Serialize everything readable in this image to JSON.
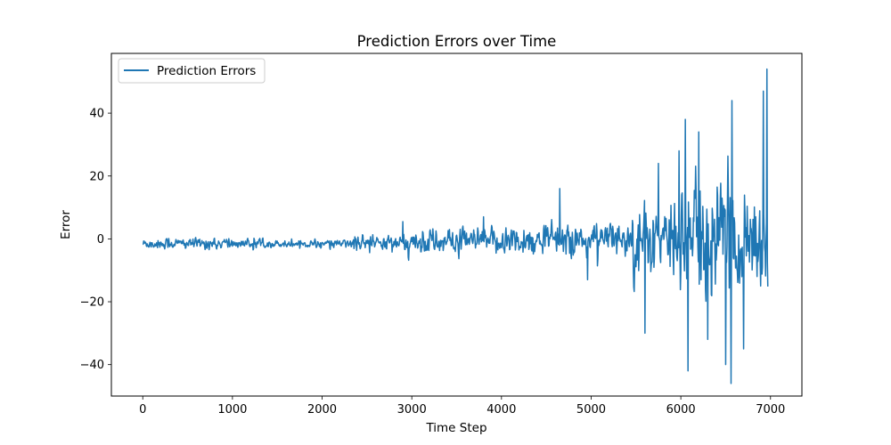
{
  "chart_data": {
    "type": "line",
    "title": "Prediction Errors over Time",
    "xlabel": "Time Step",
    "ylabel": "Error",
    "xlim": [
      -350,
      7350
    ],
    "ylim": [
      -50,
      59
    ],
    "x_ticks": [
      0,
      1000,
      2000,
      3000,
      4000,
      5000,
      6000,
      7000
    ],
    "y_ticks": [
      -40,
      -20,
      0,
      20,
      40
    ],
    "grid": false,
    "legend": {
      "placement": "upper-left",
      "entries": [
        "Prediction Errors"
      ]
    },
    "series": [
      {
        "name": "Prediction Errors",
        "color": "#1f77b4",
        "x_range": [
          0,
          6970
        ],
        "segments": [
          {
            "x_start": 0,
            "x_end": 1000,
            "center": -1.5,
            "spread": 1.2
          },
          {
            "x_start": 1000,
            "x_end": 2300,
            "center": -1.5,
            "spread": 0.8
          },
          {
            "x_start": 2300,
            "x_end": 3000,
            "center": -1.5,
            "spread": 1.8
          },
          {
            "x_start": 3000,
            "x_end": 4000,
            "center": -1.0,
            "spread": 2.6
          },
          {
            "x_start": 4000,
            "x_end": 5000,
            "center": -0.5,
            "spread": 3.2
          },
          {
            "x_start": 5000,
            "x_end": 5450,
            "center": 0.0,
            "spread": 3.5
          },
          {
            "x_start": 5450,
            "x_end": 6000,
            "center": 0.0,
            "spread": 8.0
          },
          {
            "x_start": 6000,
            "x_end": 6970,
            "center": 0.0,
            "spread": 11.0
          }
        ],
        "peaks": [
          {
            "x": 2900,
            "y": 5.5
          },
          {
            "x": 3800,
            "y": 7
          },
          {
            "x": 4650,
            "y": 16
          },
          {
            "x": 4960,
            "y": -13
          },
          {
            "x": 5600,
            "y": -30
          },
          {
            "x": 5750,
            "y": 24
          },
          {
            "x": 5980,
            "y": 28
          },
          {
            "x": 6080,
            "y": -42
          },
          {
            "x": 6050,
            "y": 38
          },
          {
            "x": 6200,
            "y": 34
          },
          {
            "x": 6300,
            "y": -32
          },
          {
            "x": 6570,
            "y": 44
          },
          {
            "x": 6560,
            "y": -46
          },
          {
            "x": 6500,
            "y": -40
          },
          {
            "x": 6700,
            "y": -35
          },
          {
            "x": 6920,
            "y": 47
          },
          {
            "x": 6960,
            "y": 54
          },
          {
            "x": 6850,
            "y": -12
          }
        ]
      }
    ]
  }
}
